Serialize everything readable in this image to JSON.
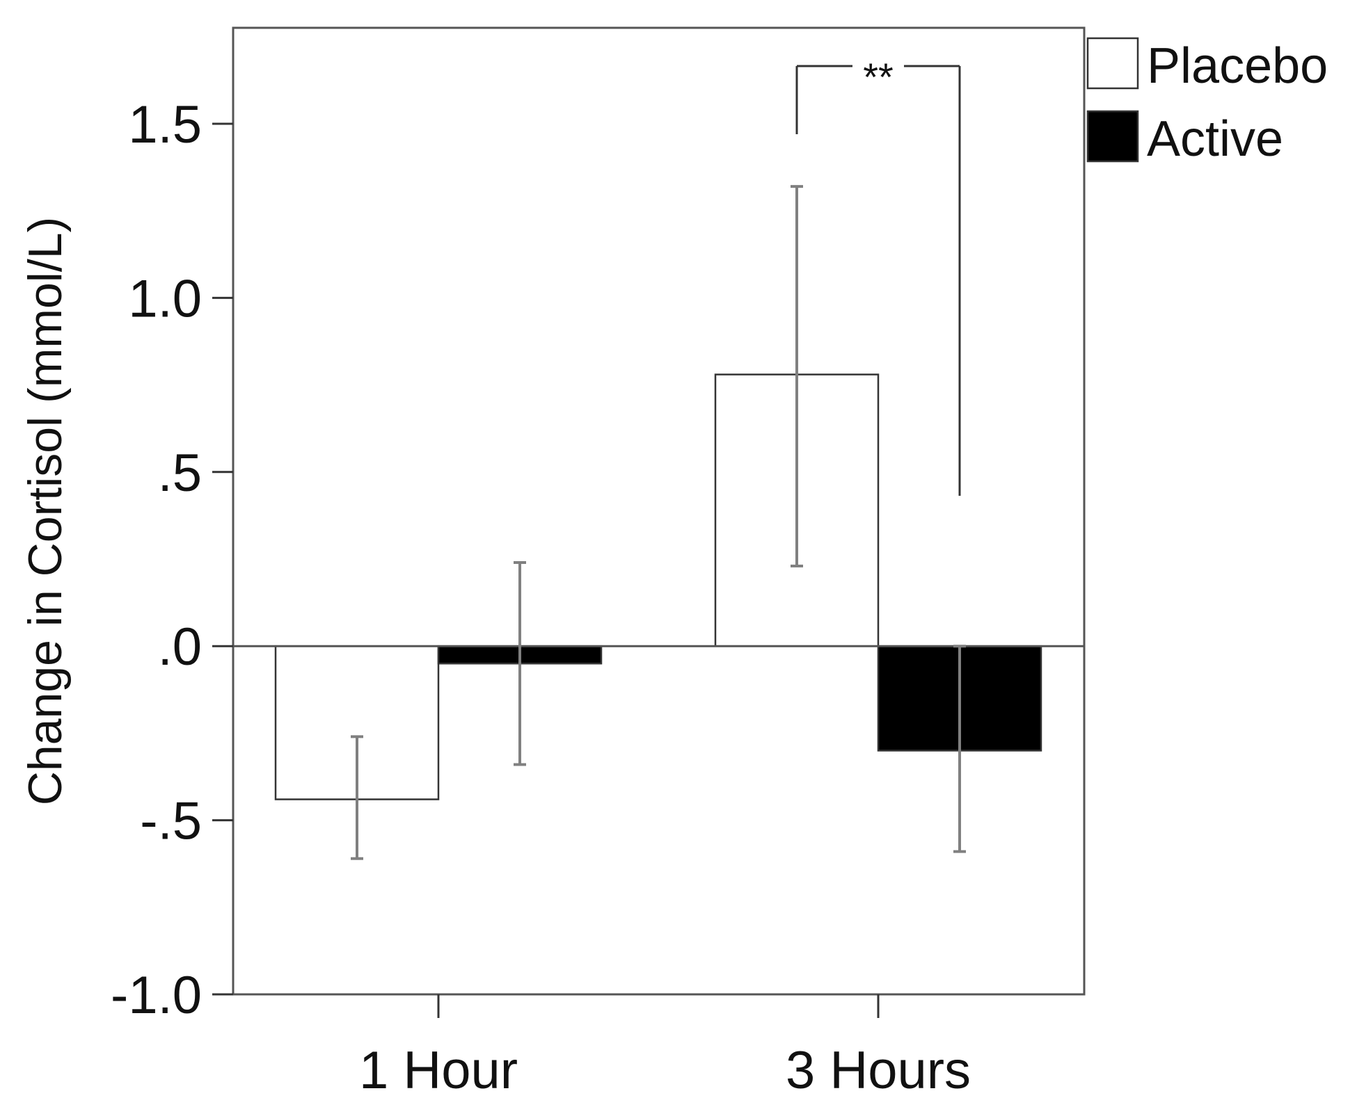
{
  "chart_data": {
    "type": "bar",
    "title": "",
    "xlabel": "",
    "ylabel": "Change in Cortisol (mmol/L)",
    "ylim": [
      -1.0,
      1.75
    ],
    "yticks": [
      -1.0,
      -0.5,
      0.0,
      0.5,
      1.0,
      1.5
    ],
    "ytick_labels": [
      "-1.0",
      "-.5",
      ".0",
      ".5",
      "1.0",
      "1.5"
    ],
    "categories": [
      "1 Hour",
      "3 Hours"
    ],
    "series": [
      {
        "name": "Placebo",
        "color": "#ffffff",
        "values": [
          -0.44,
          0.78
        ],
        "error_low": [
          -0.61,
          0.23
        ],
        "error_high": [
          -0.26,
          1.32
        ]
      },
      {
        "name": "Active",
        "color": "#000000",
        "values": [
          -0.05,
          -0.3
        ],
        "error_low": [
          -0.34,
          -0.59
        ],
        "error_high": [
          0.24,
          0.0
        ]
      }
    ],
    "grid": false,
    "legend_position": "top-right outside",
    "reference_line": 0.0,
    "annotations": [
      {
        "text": "**",
        "between": "3 Hours Placebo and 3 Hours Active"
      }
    ],
    "error_bar_color": "#808080"
  }
}
